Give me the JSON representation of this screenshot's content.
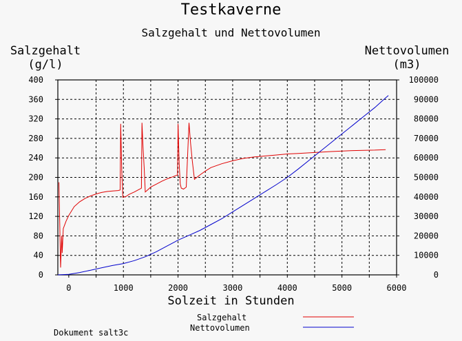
{
  "page": {
    "title": "Testkaverne",
    "subtitle": "Salzgehalt und Nettovolumen",
    "footer": "Dokument salt3c"
  },
  "chart_data": {
    "type": "line",
    "title": "Testkaverne",
    "subtitle": "Salzgehalt und Nettovolumen",
    "xlabel": "Solzeit in Stunden",
    "ylabel": "Salzgehalt\n(g/l)",
    "ylabel_left_line1": "Salzgehalt",
    "ylabel_left_line2": "(g/l)",
    "ylabel_right_line1": "Nettovolumen",
    "ylabel_right_line2": "(m3)",
    "xlim": [
      -200,
      6000
    ],
    "ylim_left": [
      0,
      400
    ],
    "ylim_right": [
      0,
      100000
    ],
    "x_ticks": [
      "0",
      "1000",
      "2000",
      "3000",
      "4000",
      "5000",
      "6000"
    ],
    "x_tick_values": [
      0,
      1000,
      2000,
      3000,
      4000,
      5000,
      6000
    ],
    "y_ticks_left": [
      "0",
      "40",
      "80",
      "120",
      "160",
      "200",
      "240",
      "280",
      "320",
      "360",
      "400"
    ],
    "y_ticks_right": [
      "0",
      "10000",
      "20000",
      "30000",
      "40000",
      "50000",
      "60000",
      "70000",
      "80000",
      "90000",
      "100000"
    ],
    "grid": true,
    "legend_position": "bottom",
    "series": [
      {
        "name": "Salzgehalt",
        "axis": "left",
        "color": "#e00000",
        "points": [
          [
            -180,
            190
          ],
          [
            -150,
            15
          ],
          [
            -130,
            80
          ],
          [
            -120,
            45
          ],
          [
            -100,
            95
          ],
          [
            -50,
            110
          ],
          [
            0,
            122
          ],
          [
            100,
            140
          ],
          [
            200,
            150
          ],
          [
            300,
            157
          ],
          [
            400,
            162
          ],
          [
            500,
            166
          ],
          [
            600,
            169
          ],
          [
            700,
            171
          ],
          [
            800,
            172
          ],
          [
            900,
            173
          ],
          [
            940,
            174
          ],
          [
            950,
            310
          ],
          [
            970,
            215
          ],
          [
            990,
            159
          ],
          [
            1050,
            161
          ],
          [
            1100,
            165
          ],
          [
            1200,
            170
          ],
          [
            1300,
            176
          ],
          [
            1330,
            178
          ],
          [
            1340,
            312
          ],
          [
            1360,
            260
          ],
          [
            1380,
            220
          ],
          [
            1400,
            170
          ],
          [
            1450,
            175
          ],
          [
            1500,
            180
          ],
          [
            1600,
            186
          ],
          [
            1700,
            192
          ],
          [
            1800,
            197
          ],
          [
            1900,
            201
          ],
          [
            1990,
            205
          ],
          [
            2000,
            310
          ],
          [
            2020,
            230
          ],
          [
            2040,
            186
          ],
          [
            2060,
            178
          ],
          [
            2100,
            176
          ],
          [
            2150,
            180
          ],
          [
            2200,
            312
          ],
          [
            2230,
            270
          ],
          [
            2260,
            235
          ],
          [
            2300,
            196
          ],
          [
            2400,
            205
          ],
          [
            2500,
            213
          ],
          [
            2600,
            220
          ],
          [
            2800,
            228
          ],
          [
            3000,
            234
          ],
          [
            3200,
            239
          ],
          [
            3400,
            242
          ],
          [
            3600,
            244
          ],
          [
            3800,
            246
          ],
          [
            4000,
            248
          ],
          [
            4200,
            249
          ],
          [
            4500,
            251
          ],
          [
            4800,
            253
          ],
          [
            5200,
            255
          ],
          [
            5600,
            256
          ],
          [
            5800,
            257
          ]
        ]
      },
      {
        "name": "Nettovolumen",
        "axis": "right",
        "color": "#0000cc",
        "points": [
          [
            -200,
            0
          ],
          [
            0,
            300
          ],
          [
            200,
            1200
          ],
          [
            400,
            2400
          ],
          [
            600,
            3600
          ],
          [
            800,
            4800
          ],
          [
            1000,
            5800
          ],
          [
            1200,
            7300
          ],
          [
            1400,
            9300
          ],
          [
            1600,
            11800
          ],
          [
            1800,
            14800
          ],
          [
            2000,
            17800
          ],
          [
            2200,
            20300
          ],
          [
            2400,
            22800
          ],
          [
            2600,
            25800
          ],
          [
            2800,
            28800
          ],
          [
            3000,
            32300
          ],
          [
            3200,
            35800
          ],
          [
            3400,
            39300
          ],
          [
            3600,
            42800
          ],
          [
            3800,
            46300
          ],
          [
            4000,
            50000
          ],
          [
            4200,
            54300
          ],
          [
            4400,
            58800
          ],
          [
            4600,
            63300
          ],
          [
            4800,
            67800
          ],
          [
            5000,
            72300
          ],
          [
            5200,
            76800
          ],
          [
            5400,
            81300
          ],
          [
            5600,
            85800
          ],
          [
            5800,
            90800
          ],
          [
            5850,
            92000
          ]
        ]
      }
    ]
  }
}
